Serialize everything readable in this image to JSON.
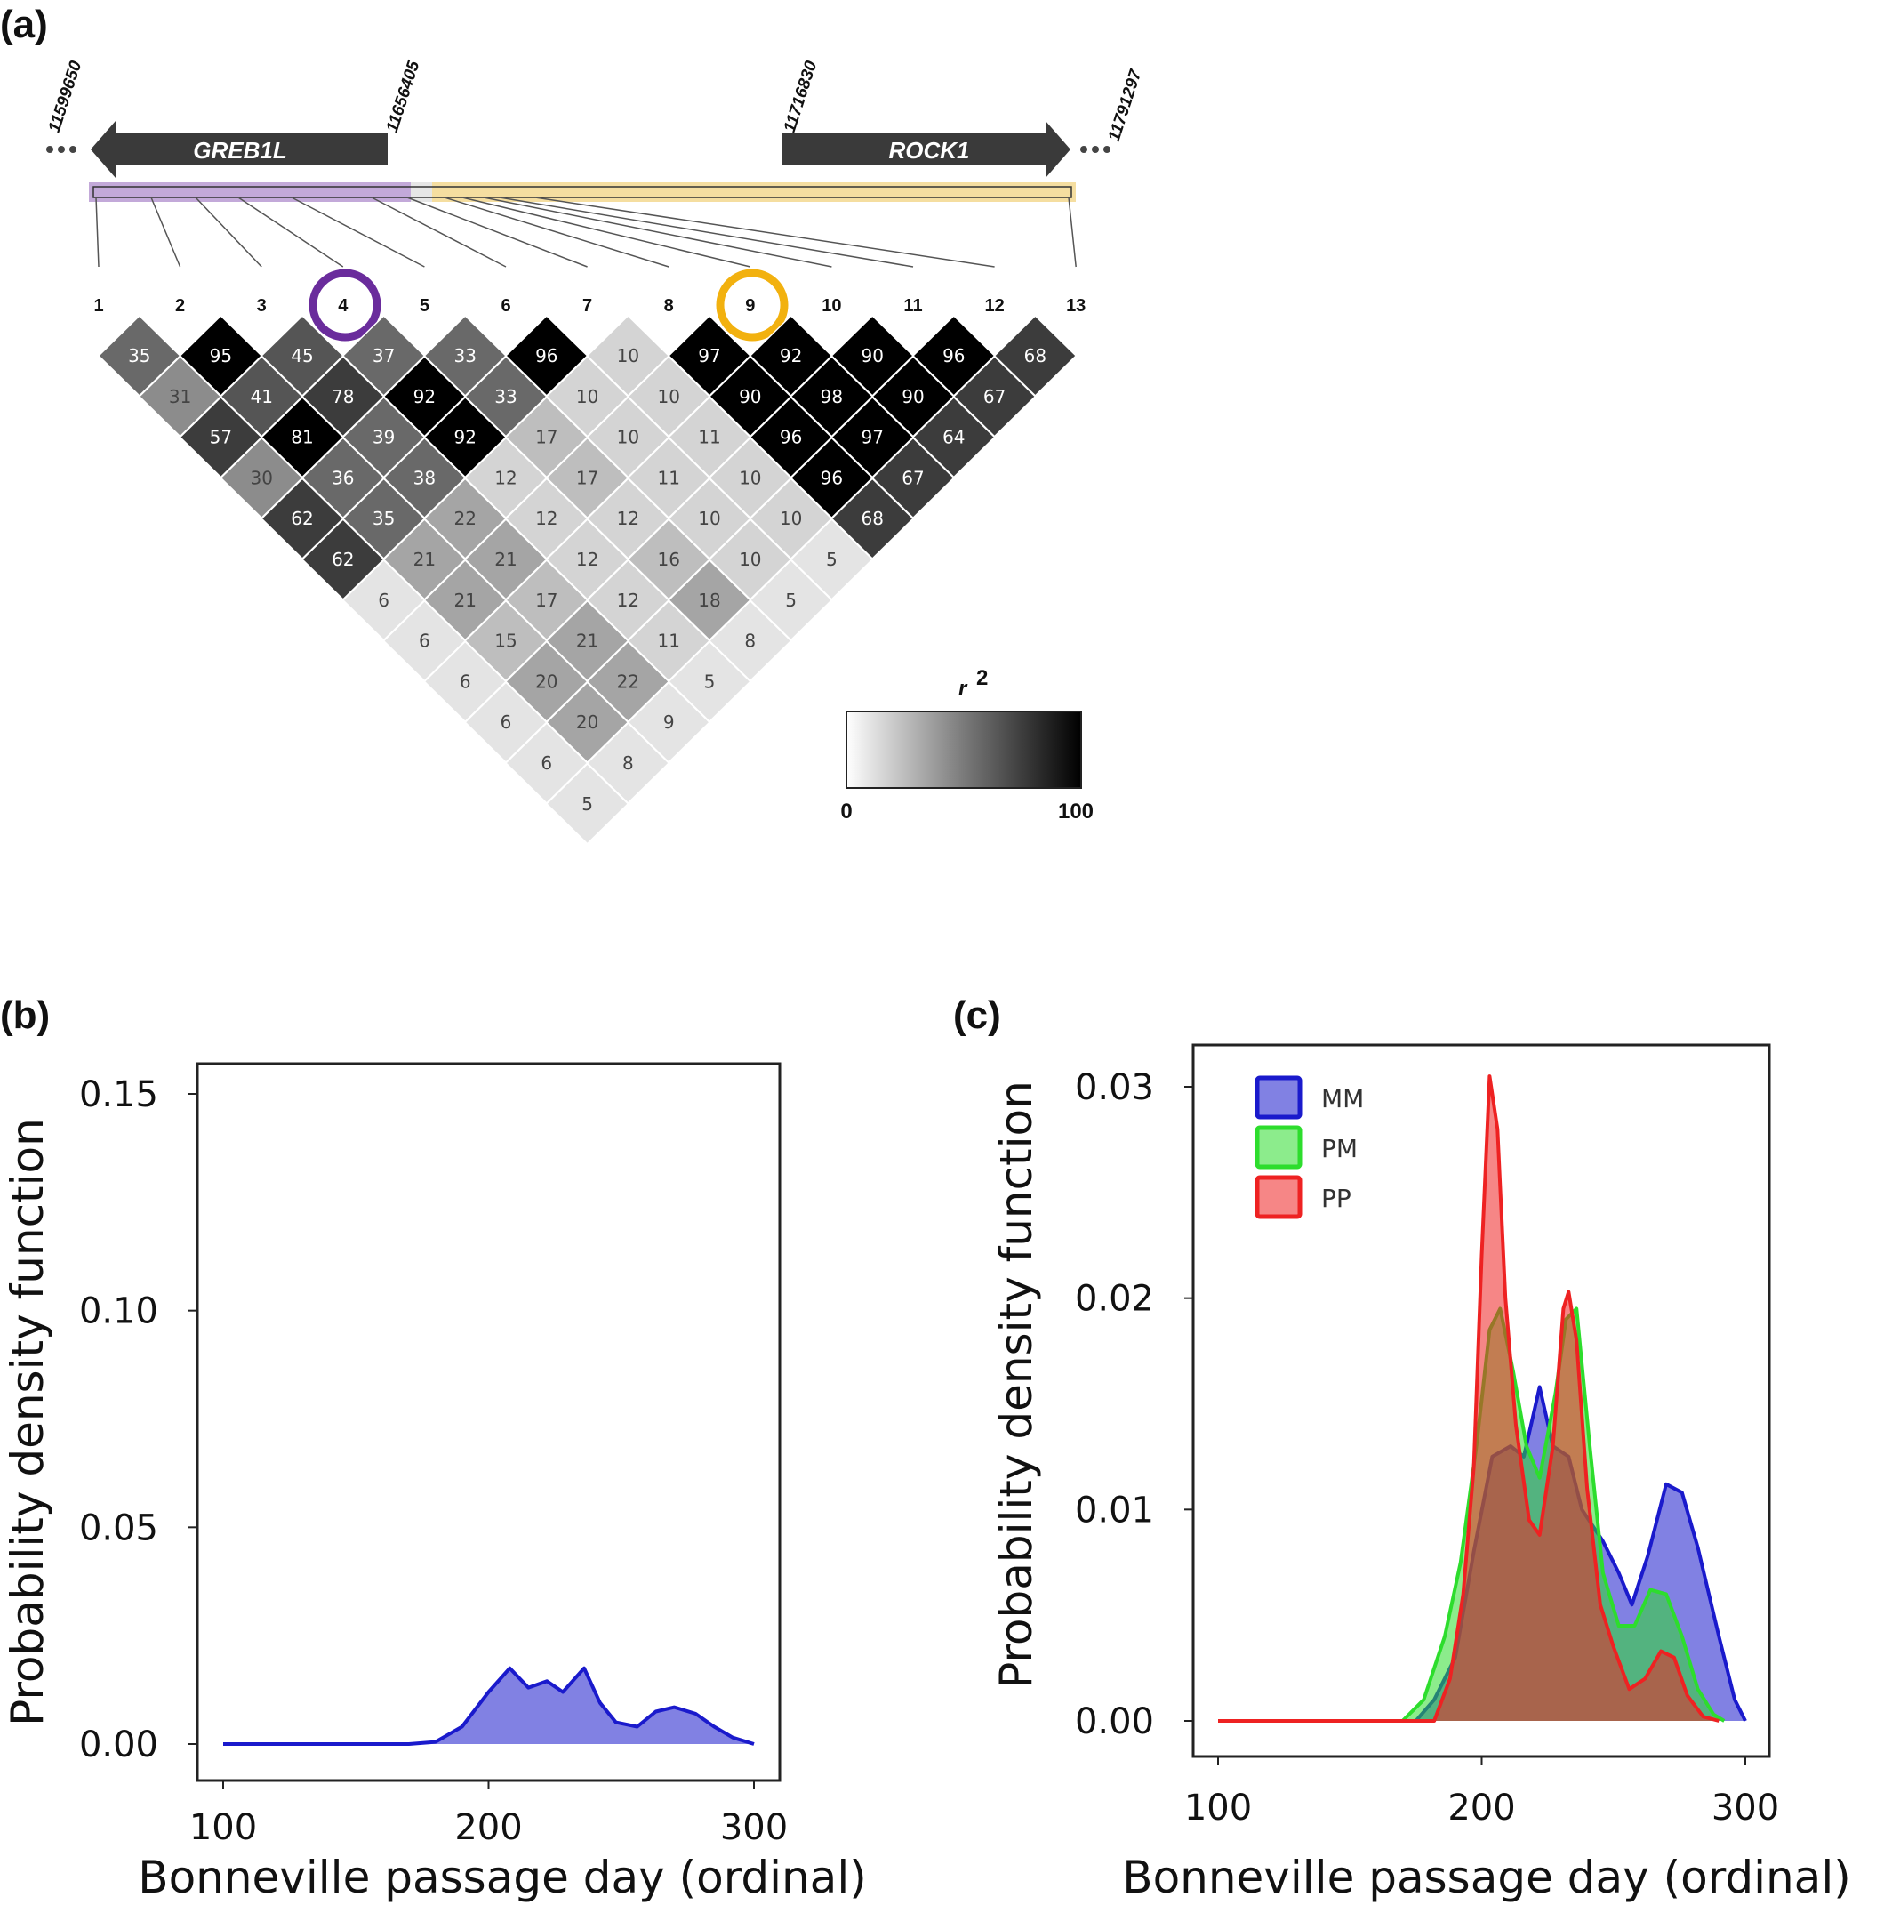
{
  "panel_labels": {
    "a": "(a)",
    "b": "(b)",
    "c": "(c)"
  },
  "chart_data": [
    {
      "type": "heatmap",
      "panel": "(a)",
      "positions": {
        "left_start": "11599650",
        "greb1l_end": "11656405",
        "rock1_start": "11716830",
        "right_end": "11791297"
      },
      "genes": [
        {
          "name": "GREB1L",
          "direction": "left"
        },
        {
          "name": "ROCK1",
          "direction": "right"
        }
      ],
      "snp_labels": [
        "1",
        "2",
        "3",
        "4",
        "5",
        "6",
        "7",
        "8",
        "9",
        "10",
        "11",
        "12",
        "13"
      ],
      "highlighted_snps": [
        {
          "snp": "4",
          "color": "#6a2c9c"
        },
        {
          "snp": "9",
          "color": "#f2b10f"
        }
      ],
      "region_colors": {
        "greb1l": "#c3a9d9",
        "rock1": "#f5dea0"
      },
      "r2_rows": [
        [
          35,
          95,
          45,
          37,
          33,
          96,
          10,
          97,
          92,
          90,
          96,
          68
        ],
        [
          31,
          41,
          78,
          92,
          33,
          10,
          10,
          90,
          98,
          90,
          67
        ],
        [
          57,
          81,
          39,
          92,
          17,
          10,
          11,
          96,
          97,
          64
        ],
        [
          30,
          36,
          38,
          12,
          17,
          11,
          10,
          96,
          67
        ],
        [
          62,
          35,
          22,
          12,
          12,
          10,
          10,
          68
        ],
        [
          62,
          21,
          21,
          12,
          16,
          10,
          5
        ],
        [
          6,
          21,
          17,
          12,
          18,
          5
        ],
        [
          6,
          15,
          21,
          11,
          8
        ],
        [
          6,
          20,
          22,
          5
        ],
        [
          6,
          20,
          9
        ],
        [
          6,
          8
        ],
        [
          5
        ]
      ],
      "colorbar": {
        "title": "r",
        "title_sup": "2",
        "min_label": "0",
        "max_label": "100"
      }
    },
    {
      "type": "area",
      "panel": "(b)",
      "xlabel": "Bonneville passage day (ordinal)",
      "ylabel": "Probability density function",
      "xlim": [
        100,
        300
      ],
      "ylim": [
        0,
        0.16
      ],
      "xticks": [
        "100",
        "200",
        "300"
      ],
      "yticks": [
        "0.00",
        "0.05",
        "0.10",
        "0.15"
      ],
      "series": [
        {
          "color": "#1a1acc",
          "x": [
            100,
            170,
            180,
            190,
            200,
            208,
            215,
            222,
            228,
            236,
            242,
            248,
            256,
            263,
            270,
            278,
            285,
            292,
            300
          ],
          "y": [
            0,
            0,
            0.0005,
            0.004,
            0.012,
            0.0175,
            0.013,
            0.0145,
            0.012,
            0.0175,
            0.0095,
            0.005,
            0.004,
            0.0075,
            0.0085,
            0.007,
            0.004,
            0.0015,
            0
          ]
        }
      ]
    },
    {
      "type": "area",
      "panel": "(c)",
      "xlabel": "Bonneville passage day (ordinal)",
      "ylabel": "Probability density function",
      "xlim": [
        100,
        300
      ],
      "ylim": [
        0,
        0.032
      ],
      "xticks": [
        "100",
        "200",
        "300"
      ],
      "yticks": [
        "0.00",
        "0.01",
        "0.02",
        "0.03"
      ],
      "legend": {
        "position": "top-left"
      },
      "series": [
        {
          "name": "MM",
          "color": "#1a1acc",
          "x": [
            100,
            175,
            182,
            190,
            197,
            204,
            211,
            216,
            222,
            227,
            233,
            238,
            246,
            252,
            257,
            263,
            270,
            276,
            282,
            290,
            296,
            300
          ],
          "y": [
            0,
            0,
            0.001,
            0.003,
            0.008,
            0.0125,
            0.013,
            0.0125,
            0.0158,
            0.013,
            0.0125,
            0.01,
            0.0085,
            0.007,
            0.0055,
            0.0078,
            0.0112,
            0.0108,
            0.0082,
            0.004,
            0.001,
            0
          ]
        },
        {
          "name": "PM",
          "color": "#2ddd2d",
          "x": [
            100,
            170,
            178,
            186,
            192,
            198,
            203,
            207,
            212,
            217,
            222,
            228,
            232,
            236,
            241,
            246,
            252,
            258,
            264,
            270,
            276,
            282,
            288,
            292
          ],
          "y": [
            0,
            0,
            0.001,
            0.004,
            0.0075,
            0.013,
            0.0185,
            0.0195,
            0.0165,
            0.013,
            0.0115,
            0.0155,
            0.019,
            0.0195,
            0.013,
            0.007,
            0.0045,
            0.0045,
            0.0062,
            0.006,
            0.004,
            0.0015,
            0.0003,
            0
          ]
        },
        {
          "name": "PP",
          "color": "#ee2222",
          "x": [
            100,
            182,
            188,
            193,
            197,
            200,
            203,
            206,
            209,
            213,
            218,
            222,
            227,
            231,
            233,
            236,
            240,
            245,
            250,
            256,
            262,
            268,
            273,
            278,
            284,
            290
          ],
          "y": [
            0,
            0,
            0.002,
            0.006,
            0.012,
            0.022,
            0.0305,
            0.028,
            0.02,
            0.014,
            0.0095,
            0.0088,
            0.013,
            0.0195,
            0.0203,
            0.018,
            0.011,
            0.0055,
            0.0035,
            0.0015,
            0.002,
            0.0033,
            0.003,
            0.0012,
            0.0002,
            0
          ]
        }
      ]
    }
  ]
}
